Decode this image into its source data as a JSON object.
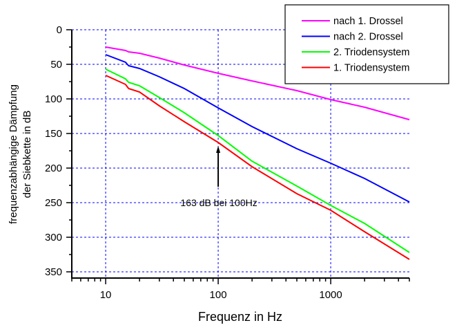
{
  "chart_data": {
    "type": "line",
    "title": "",
    "xlabel": "Frequenz in Hz",
    "ylabel_lines": [
      "frequenzabhängige Dämpfung",
      "der Siebkette in dB"
    ],
    "x_scale": "log",
    "xlim": [
      5,
      5000
    ],
    "ylim": [
      0,
      360
    ],
    "y_inverted": true,
    "grid": true,
    "grid_color": "#0000ff",
    "x_ticks": [
      10,
      100,
      1000
    ],
    "x_tick_labels": [
      "10",
      "100",
      "1000"
    ],
    "y_ticks": [
      0,
      50,
      100,
      150,
      200,
      250,
      300,
      350
    ],
    "y_tick_labels": [
      "0",
      "50",
      "100",
      "150",
      "200",
      "250",
      "300",
      "350"
    ],
    "legend_position": "top-right",
    "x": [
      10,
      15,
      16,
      20,
      30,
      50,
      100,
      200,
      500,
      1000,
      2000,
      5000
    ],
    "series": [
      {
        "name": "nach 1. Drossel",
        "color": "#ff00ff",
        "values": [
          25,
          30,
          32,
          34,
          41,
          51,
          63,
          74,
          88,
          101,
          112,
          130
        ]
      },
      {
        "name": "nach 2. Drossel",
        "color": "#0000ff",
        "values": [
          36,
          47,
          52,
          56,
          68,
          85,
          113,
          140,
          172,
          193,
          215,
          249
        ]
      },
      {
        "name": "2. Triodensystem",
        "color": "#00ff00",
        "values": [
          57,
          71,
          76,
          81,
          98,
          120,
          153,
          190,
          226,
          254,
          280,
          322
        ]
      },
      {
        "name": "1. Triodensystem",
        "color": "#ff0000",
        "values": [
          66,
          79,
          85,
          90,
          110,
          133,
          163,
          198,
          237,
          261,
          292,
          332
        ]
      }
    ],
    "annotation": {
      "text": "163 dB bei 100Hz",
      "x": 100,
      "arrow_from": 227,
      "arrow_to": 168
    }
  }
}
